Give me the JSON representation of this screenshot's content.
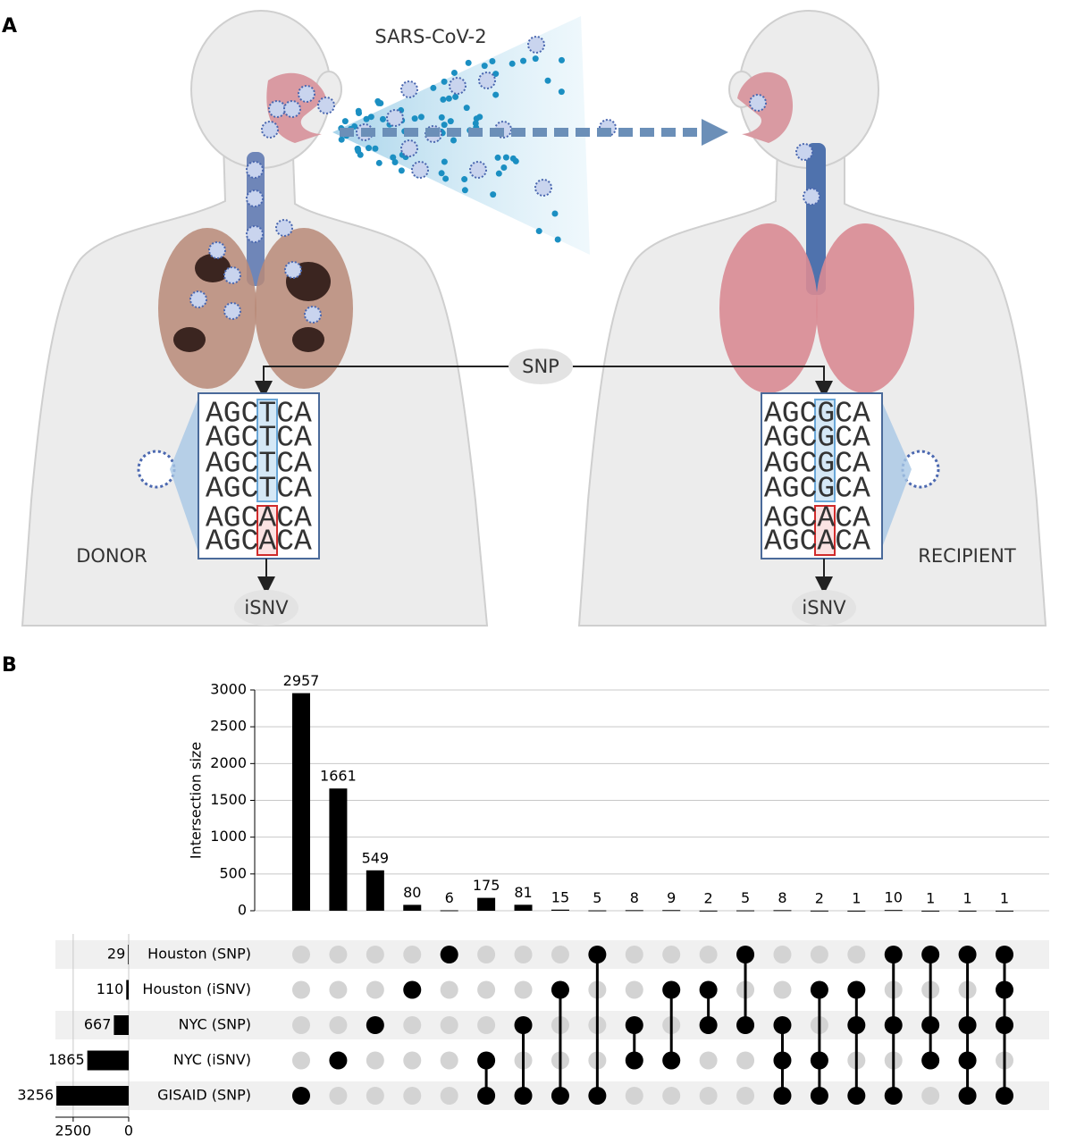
{
  "panel_a": {
    "label": "A",
    "virus": "SARS-CoV-2",
    "snp": "SNP",
    "donor": {
      "name": "DONOR",
      "sequences": [
        "AGCTCA",
        "AGCTCA",
        "AGCTCA",
        "AGCTCA",
        "AGCACA",
        "AGCACA"
      ],
      "isnv": "iSNV"
    },
    "recipient": {
      "name": "RECIPIENT",
      "sequences": [
        "AGCGCA",
        "AGCGCA",
        "AGCGCA",
        "AGCGCA",
        "AGCACA",
        "AGCACA"
      ],
      "isnv": "iSNV"
    }
  },
  "panel_b": {
    "label": "B"
  },
  "chart_data": {
    "type": "upset",
    "y_label": "Intersection size",
    "sets": {
      "names": [
        "Houston (SNP)",
        "Houston (iSNV)",
        "NYC (SNP)",
        "NYC (iSNV)",
        "GISAID (SNP)"
      ],
      "sizes": [
        29,
        110,
        667,
        1865,
        3256
      ]
    },
    "intersections": {
      "values": [
        2957,
        1661,
        549,
        80,
        6,
        175,
        81,
        15,
        5,
        8,
        9,
        2,
        5,
        8,
        2,
        1,
        10,
        1,
        1,
        1
      ],
      "members": [
        [
          4
        ],
        [
          3
        ],
        [
          2
        ],
        [
          1
        ],
        [
          0
        ],
        [
          3,
          4
        ],
        [
          2,
          4
        ],
        [
          1,
          4
        ],
        [
          0,
          4
        ],
        [
          2,
          3
        ],
        [
          1,
          3
        ],
        [
          1,
          2
        ],
        [
          0,
          2
        ],
        [
          2,
          3,
          4
        ],
        [
          1,
          3,
          4
        ],
        [
          1,
          2,
          4
        ],
        [
          0,
          2,
          4
        ],
        [
          0,
          2,
          3
        ],
        [
          0,
          2,
          3,
          4
        ],
        [
          0,
          1,
          2,
          4
        ]
      ]
    },
    "ylim": [
      0,
      3000
    ],
    "yticks": [
      0,
      500,
      1000,
      1500,
      2000,
      2500,
      3000
    ],
    "set_xlim": [
      0,
      3300
    ],
    "set_xticks": [
      2500,
      0
    ],
    "grid": true,
    "color": "#000000",
    "inactive_color": "#d3d3d3",
    "stripe_color": "#f0f0f0"
  }
}
